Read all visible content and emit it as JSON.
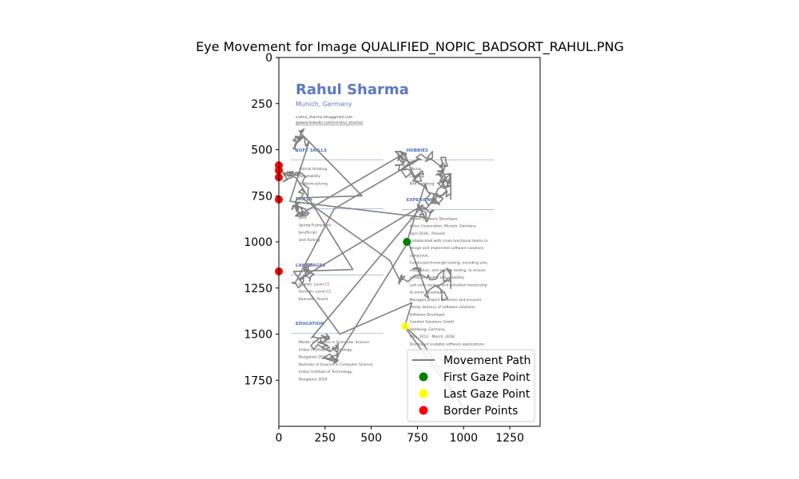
{
  "chart_data": {
    "type": "scatter",
    "title": "Eye Movement for Image QUALIFIED_NOPIC_BADSORT_RAHUL.PNG",
    "xlabel": "",
    "ylabel": "",
    "xlim": [
      0,
      1414
    ],
    "ylim": [
      2000,
      0
    ],
    "y_inverted": true,
    "x_ticks": [
      0,
      250,
      500,
      750,
      1000,
      1250
    ],
    "y_ticks": [
      0,
      250,
      500,
      750,
      1000,
      1250,
      1500,
      1750
    ],
    "grid": false,
    "legend_position": "lower-right",
    "colors": {
      "path": "#808080",
      "first": "#008000",
      "last": "#ffff00",
      "border": "#ff0000",
      "cv_heading": "#4a6fbe"
    },
    "legend": [
      "Movement Path",
      "First Gaze Point",
      "Last Gaze Point",
      "Border Points"
    ],
    "first_gaze_point": {
      "x": 693,
      "y": 1000
    },
    "last_gaze_point": {
      "x": 683,
      "y": 1458
    },
    "border_points": [
      {
        "x": 0,
        "y": 585
      },
      {
        "x": 0,
        "y": 612
      },
      {
        "x": 0,
        "y": 650
      },
      {
        "x": 0,
        "y": 770
      },
      {
        "x": 0,
        "y": 1160
      }
    ],
    "path_clusters": [
      {
        "cx": 150,
        "cy": 470,
        "rx": 80,
        "ry": 140,
        "n": 70
      },
      {
        "cx": 120,
        "cy": 740,
        "rx": 110,
        "ry": 120,
        "n": 90
      },
      {
        "cx": 100,
        "cy": 1230,
        "rx": 90,
        "ry": 110,
        "n": 80
      },
      {
        "cx": 150,
        "cy": 1540,
        "rx": 170,
        "ry": 120,
        "n": 110
      },
      {
        "cx": 780,
        "cy": 700,
        "rx": 150,
        "ry": 190,
        "n": 150
      },
      {
        "cx": 790,
        "cy": 1320,
        "rx": 140,
        "ry": 180,
        "n": 110
      }
    ],
    "path_links": [
      {
        "x": 60,
        "y": 780
      },
      {
        "x": 450,
        "y": 750
      },
      {
        "x": 680,
        "y": 520
      },
      {
        "x": 300,
        "y": 820
      },
      {
        "x": 780,
        "y": 800
      },
      {
        "x": 700,
        "y": 1000
      },
      {
        "x": 600,
        "y": 1100
      },
      {
        "x": 400,
        "y": 1150
      },
      {
        "x": 80,
        "y": 1160
      },
      {
        "x": 330,
        "y": 1500
      },
      {
        "x": 720,
        "y": 1330
      },
      {
        "x": 680,
        "y": 1460
      },
      {
        "x": 1000,
        "y": 1900
      },
      {
        "x": 780,
        "y": 1550
      }
    ]
  },
  "background": {
    "name": "Rahul Sharma",
    "location": "Munich, Germany",
    "email": "vrahul_sharma.dev@gmail.com",
    "linkedin": "@www.linkedin.com/in/rahul_sharma/",
    "sections_left": [
      {
        "heading": "SOFT SKILLS",
        "items": [
          "Critical thinking",
          "Adaptability",
          "Problem-solving"
        ]
      },
      {
        "heading": "SKILLS",
        "items": [
          "Java",
          "Spring Framework",
          "JavaScript",
          "Unit Testing"
        ]
      },
      {
        "heading": "LANGUAGES",
        "items": [
          "English: Level C1",
          "German: Level C2",
          "Kannada: Fluent"
        ]
      },
      {
        "heading": "EDUCATION",
        "items": [
          "Master of Science in Computer Science",
          "Indian Institute of Technology,",
          "Bangalore 2012",
          "Bachelor of Science in Computer Science",
          "Indian Institute of Technology,",
          "Bangalore 2010"
        ]
      }
    ],
    "sections_right": [
      {
        "heading": "HOBBIES",
        "items": [
          "Hiking",
          "Cooking",
          "Bird watching"
        ]
      },
      {
        "heading": "EXPERIENCE",
        "items": [
          "Senior Software Developer",
          "Intive Corporation, Munich, Germany",
          "April 2018 - Present",
          "Collaborated with cross-functional teams to",
          "design and implement software solutions",
          "using Java.",
          "Conducted thorough testing, including unit,",
          "integration, and system testing, to ensure",
          "software quality and reliability.",
          "Led code reviews and provided mentorship",
          "to junior developers.",
          "Managed project timelines and ensured",
          "timely delivery of software solutions.",
          "Software Developer",
          "Comfort Solutions GmbH",
          "Hamburg, Germany",
          "May, 2012 - March, 2018",
          "Developed scalable software applications",
          "using Java and Spring Boot.",
          "Integrated third-party APIs and services",
          "into existing applications."
        ]
      }
    ]
  }
}
